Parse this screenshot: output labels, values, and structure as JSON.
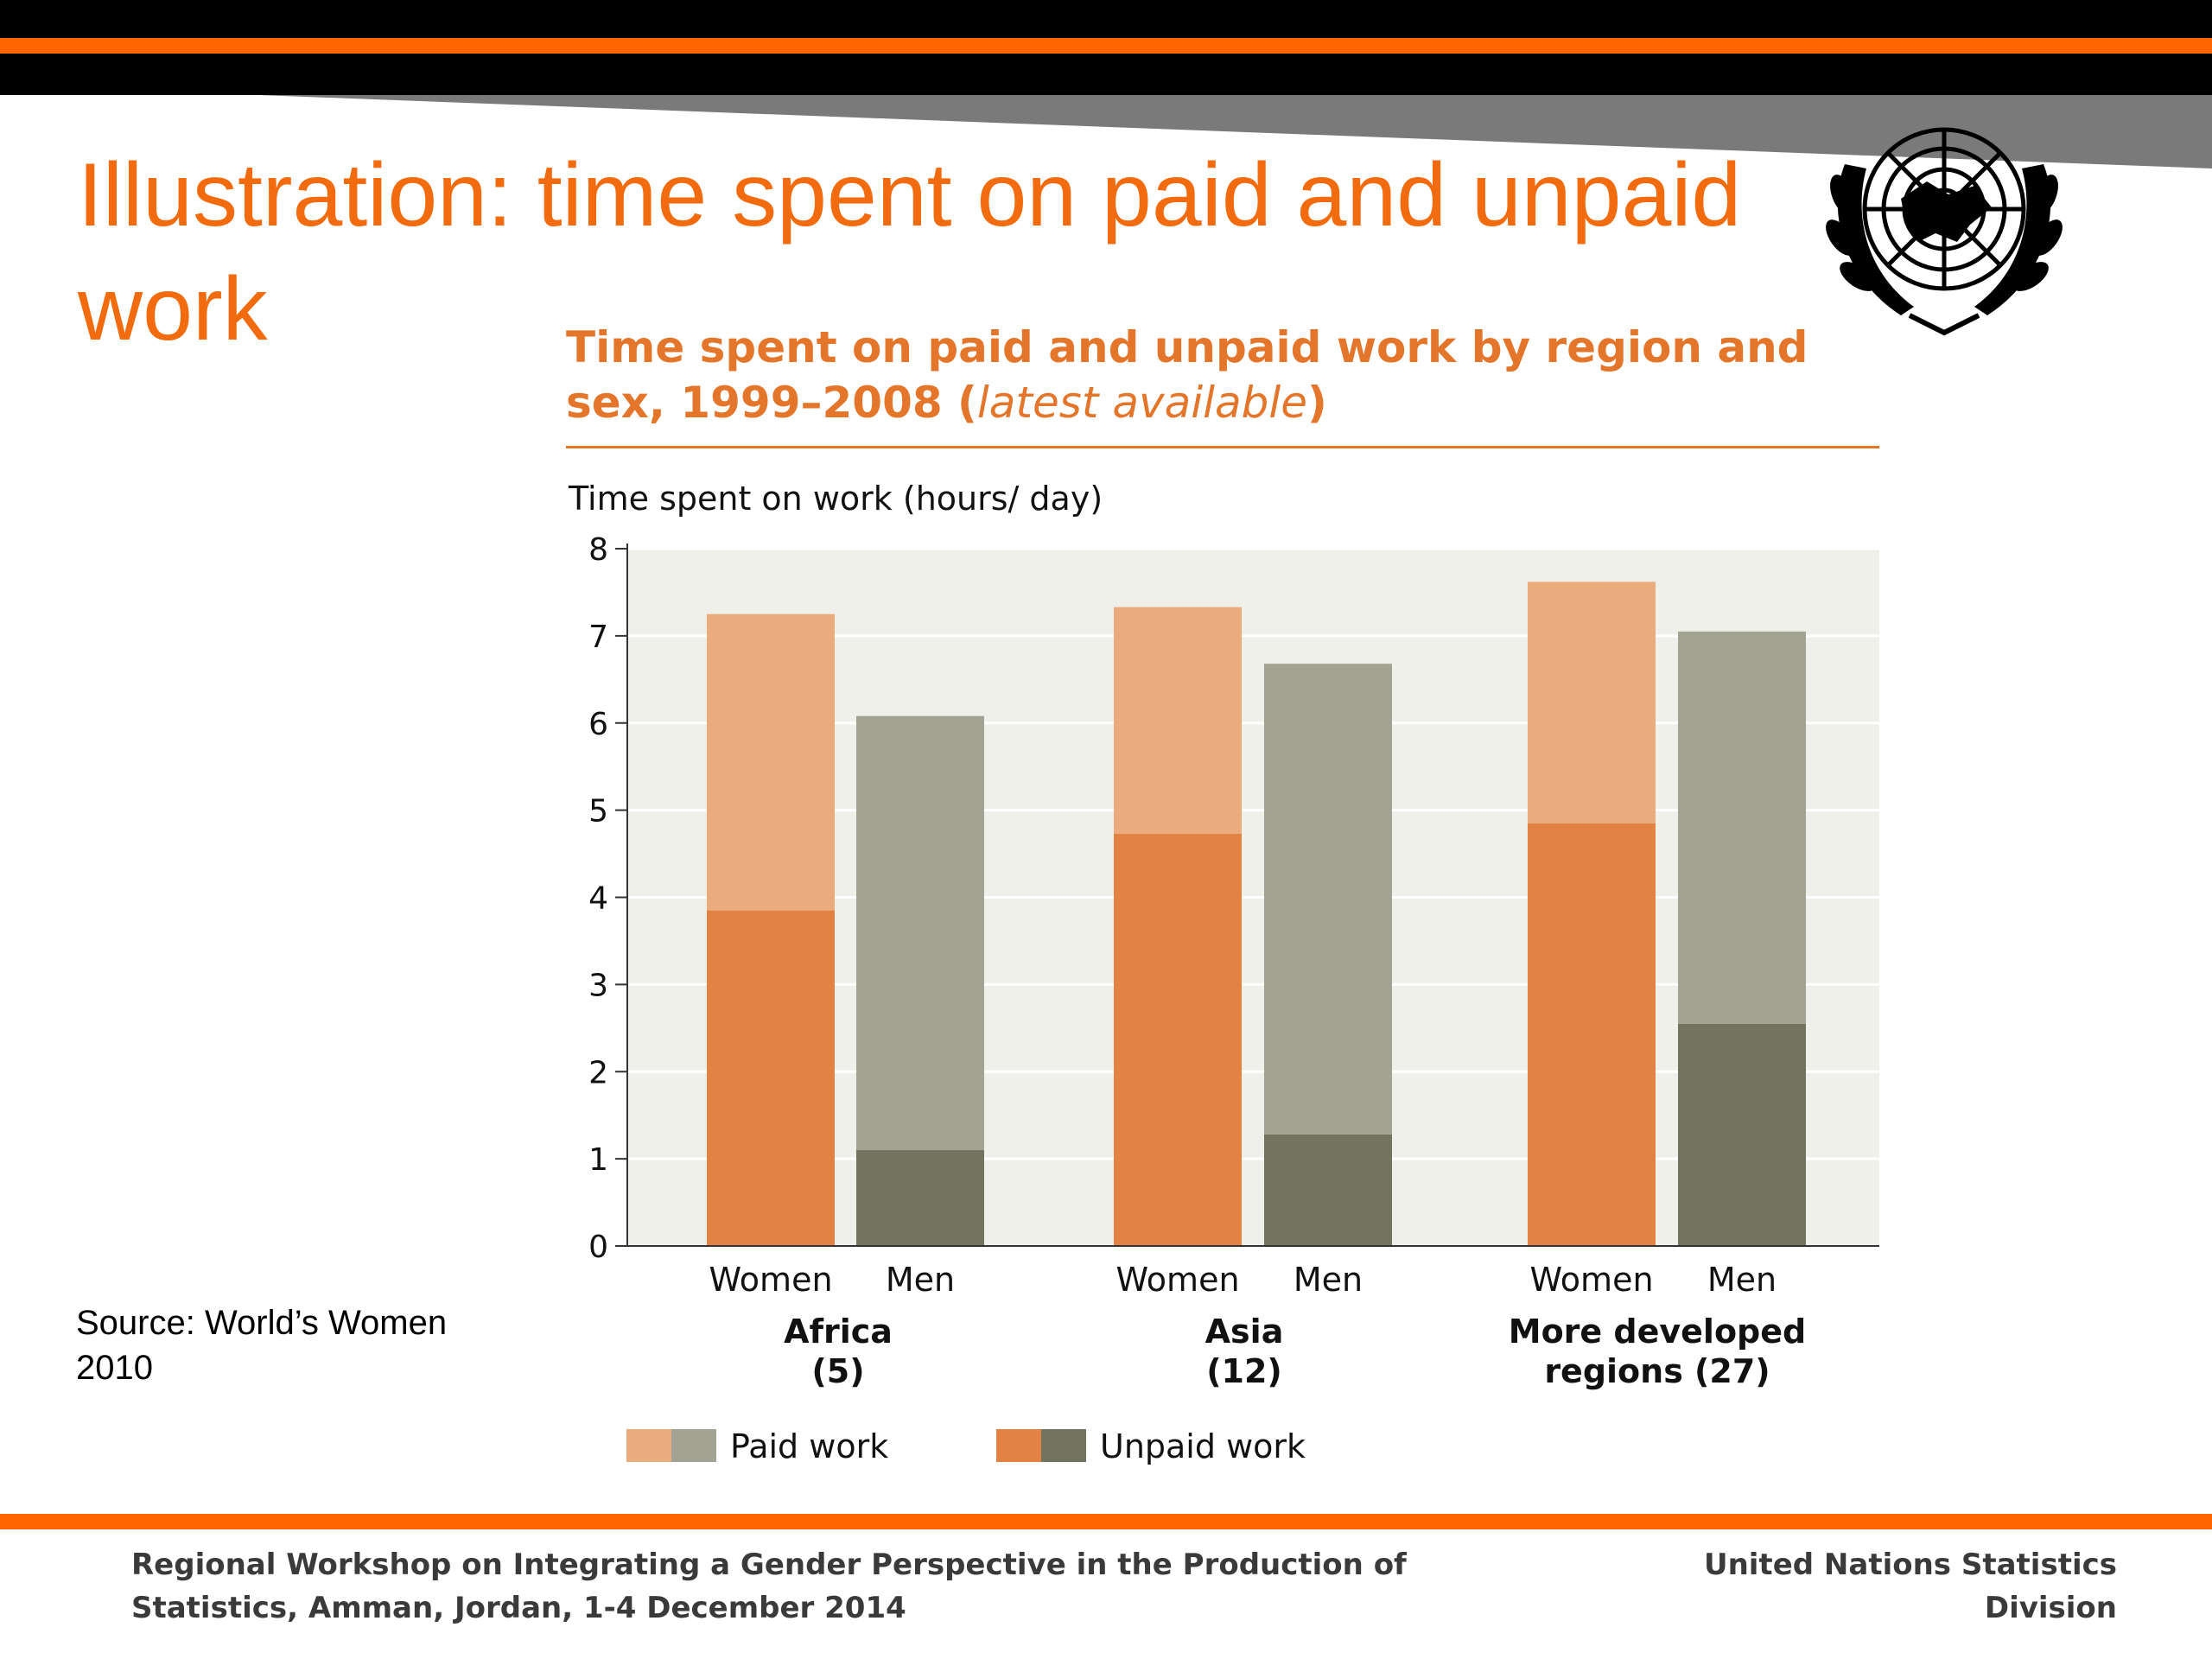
{
  "slide": {
    "title": "Illustration: time spent on paid and unpaid work",
    "source_line1": "Source: World’s Women",
    "source_line2": "2010"
  },
  "footer": {
    "left_line1": "Regional Workshop on Integrating a Gender Perspective in the Production of",
    "left_line2": "Statistics, Amman, Jordan, 1-4 December 2014",
    "right": "United Nations Statistics Division"
  },
  "colors": {
    "brand_orange": "#ff6600",
    "title_orange": "#f26c0f",
    "women_paid": "#eaab7d",
    "women_unpaid": "#e38343",
    "men_paid": "#a3a393",
    "men_unpaid": "#737460",
    "plot_bg": "#f0f0ea"
  },
  "chart_data": {
    "type": "bar",
    "stacked": true,
    "title_main": "Time spent on paid and unpaid work by region and",
    "title_line2": "sex, 1999–2008 (",
    "title_italic": "latest available",
    "title_close": ")",
    "ylabel": "Time spent on work (hours/ day)",
    "ylim": [
      0,
      8
    ],
    "yticks": [
      "0",
      "1",
      "2",
      "3",
      "4",
      "5",
      "6",
      "7",
      "8"
    ],
    "grid": true,
    "groups": [
      {
        "label": "Africa",
        "sublabel": "(5)"
      },
      {
        "label": "Asia",
        "sublabel": "(12)"
      },
      {
        "label": "More developed",
        "sublabel": "regions (27)"
      }
    ],
    "bars": [
      {
        "group": 0,
        "sex": "Women",
        "unpaid": 3.85,
        "paid": 3.4
      },
      {
        "group": 0,
        "sex": "Men",
        "unpaid": 1.1,
        "paid": 4.98
      },
      {
        "group": 1,
        "sex": "Women",
        "unpaid": 4.73,
        "paid": 2.6
      },
      {
        "group": 1,
        "sex": "Men",
        "unpaid": 1.28,
        "paid": 5.4
      },
      {
        "group": 2,
        "sex": "Women",
        "unpaid": 4.85,
        "paid": 2.77
      },
      {
        "group": 2,
        "sex": "Men",
        "unpaid": 2.55,
        "paid": 4.5
      }
    ],
    "legend": {
      "placement": "bottom",
      "paid_label": "Paid work",
      "unpaid_label": "Unpaid work"
    }
  }
}
